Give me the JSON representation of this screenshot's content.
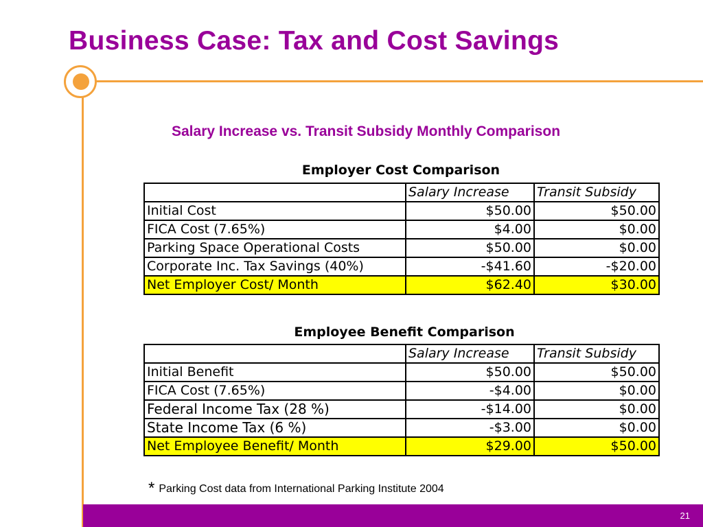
{
  "slide": {
    "title": "Business Case: Tax and Cost Savings",
    "subtitle": "Salary Increase vs. Transit Subsidy Monthly Comparison",
    "page_number": "21",
    "colors": {
      "title": "#990099",
      "accent": "#f4a23c",
      "highlight": "#ffff00",
      "footer": "#990099"
    }
  },
  "employer_table": {
    "caption": "Employer Cost Comparison",
    "headers": [
      "",
      "Salary Increase",
      "Transit Subsidy"
    ],
    "rows": [
      [
        "Initial Cost",
        "$50.00",
        "$50.00"
      ],
      [
        "FICA Cost (7.65%)",
        "$4.00",
        "$0.00"
      ],
      [
        "Parking Space Operational Costs",
        "$50.00",
        "$0.00"
      ],
      [
        "Corporate Inc. Tax Savings (40%)",
        "-$41.60",
        "-$20.00"
      ],
      [
        "Net Employer Cost/ Month",
        "$62.40",
        "$30.00"
      ]
    ]
  },
  "employee_table": {
    "caption": "Employee Benefit Comparison",
    "headers": [
      "",
      "Salary Increase",
      "Transit Subsidy"
    ],
    "rows": [
      [
        "Initial Benefit",
        "$50.00",
        "$50.00"
      ],
      [
        "FICA Cost (7.65%)",
        "-$4.00",
        "$0.00"
      ],
      [
        "Federal Income Tax (28 %)",
        "-$14.00",
        "$0.00"
      ],
      [
        "State Income Tax (6 %)",
        "-$3.00",
        "$0.00"
      ],
      [
        "Net Employee Benefit/ Month",
        "$29.00",
        "$50.00"
      ]
    ]
  },
  "footnote": {
    "marker": "*",
    "text": "Parking Cost data from International Parking Institute 2004"
  }
}
